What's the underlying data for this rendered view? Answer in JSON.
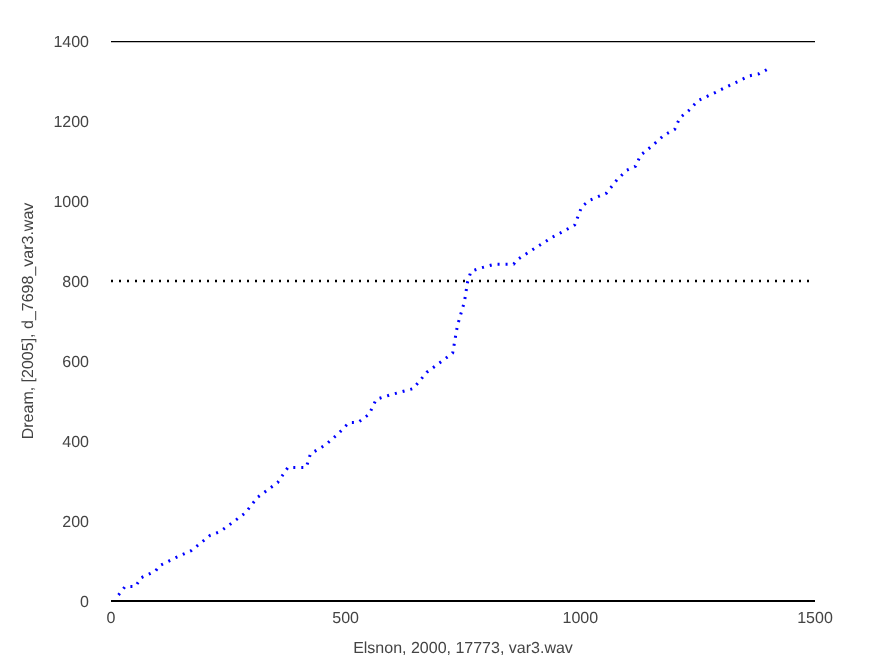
{
  "chart_data": {
    "type": "line",
    "xlabel": "Elsnon, 2000, 17773, var3.wav",
    "ylabel": "Dream, [2005], d_7698_var3.wav",
    "xlim": [
      0,
      1500
    ],
    "ylim": [
      0,
      1400
    ],
    "xticks": [
      0,
      500,
      1000,
      1500
    ],
    "yticks": [
      0,
      200,
      400,
      600,
      800,
      1000,
      1200,
      1400
    ],
    "line_style": "dotted",
    "series": [
      {
        "color": "#0000ff",
        "x": [
          16,
          30,
          52,
          64,
          95,
          103,
          139,
          171,
          211,
          233,
          261,
          286,
          312,
          355,
          377,
          416,
          425,
          457,
          485,
          507,
          526,
          550,
          565,
          594,
          644,
          673,
          709,
          728,
          738,
          753,
          760,
          767,
          789,
          818,
          858,
          864,
          890,
          941,
          962,
          988,
          1003,
          1020,
          1056,
          1078,
          1099,
          1118,
          1128,
          1150,
          1179,
          1201,
          1212,
          1230,
          1251,
          1287,
          1309,
          1338,
          1360,
          1381,
          1403
        ],
        "values": [
          15,
          36,
          36,
          58,
          75,
          88,
          109,
          126,
          164,
          174,
          198,
          220,
          259,
          296,
          334,
          334,
          368,
          390,
          419,
          446,
          446,
          467,
          504,
          515,
          531,
          572,
          603,
          620,
          688,
          748,
          799,
          824,
          833,
          842,
          842,
          852,
          872,
          910,
          923,
          940,
          986,
          1002,
          1020,
          1053,
          1077,
          1087,
          1114,
          1135,
          1165,
          1179,
          1208,
          1225,
          1251,
          1271,
          1284,
          1300,
          1313,
          1318,
          1332
        ]
      }
    ],
    "ref_lines": [
      {
        "axis": "y",
        "value": 1400,
        "line_style": "solid",
        "color": "#000000"
      },
      {
        "axis": "y",
        "value": 800,
        "line_style": "dotted",
        "color": "#000000"
      }
    ]
  }
}
